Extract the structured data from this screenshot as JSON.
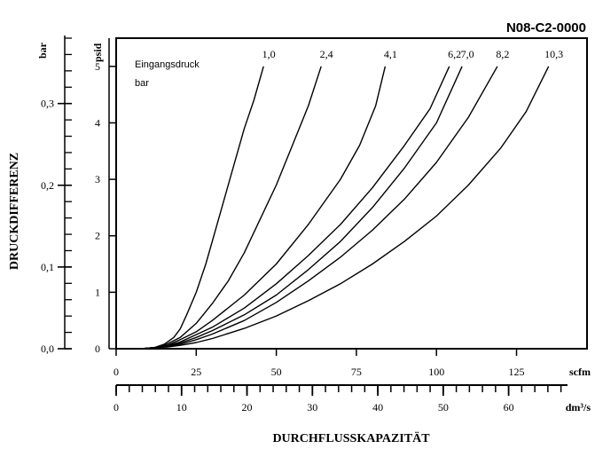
{
  "chart_data": {
    "type": "line",
    "code": "N08-C2-0000",
    "ylabel": "DRUCKDIFFERENZ",
    "xlabel": "DURCHFLUSSKAPAZITÄT",
    "legend_title_line1": "Eingangsdruck",
    "legend_title_line2": "bar",
    "y_psid": {
      "unit": "psid",
      "ylim": [
        0,
        5.5
      ],
      "ticks": [
        0,
        1,
        2,
        3,
        4,
        5
      ],
      "tick_labels": [
        "0",
        "1",
        "2",
        "3",
        "4",
        "5"
      ]
    },
    "y_bar": {
      "unit": "bar",
      "ylim": [
        0,
        0.38
      ],
      "ticks": [
        0.0,
        0.1,
        0.2,
        0.3
      ],
      "tick_labels": [
        "0,0",
        "0,1",
        "0,2",
        "0,3"
      ],
      "minor_step": 0.02
    },
    "x_scfm": {
      "unit": "scfm",
      "xlim": [
        0,
        147
      ],
      "ticks": [
        0,
        25,
        50,
        75,
        100,
        125
      ],
      "tick_labels": [
        "0",
        "25",
        "50",
        "75",
        "100",
        "125"
      ]
    },
    "x_dm3s": {
      "unit": "dm³/s",
      "xlim": [
        0,
        69
      ],
      "ticks": [
        0,
        10,
        20,
        30,
        40,
        50,
        60
      ],
      "tick_labels": [
        "0",
        "10",
        "20",
        "30",
        "40",
        "50",
        "60"
      ],
      "minor_step": 2
    },
    "series": [
      {
        "name": "1,0",
        "x": [
          0,
          8,
          12,
          15,
          18,
          20,
          22,
          25,
          28,
          32,
          36,
          40,
          43,
          46
        ],
        "y": [
          0,
          0,
          0.02,
          0.08,
          0.2,
          0.35,
          0.6,
          1.0,
          1.5,
          2.3,
          3.1,
          3.9,
          4.4,
          5.0
        ]
      },
      {
        "name": "2,4",
        "x": [
          0,
          8,
          12,
          15,
          20,
          25,
          30,
          35,
          40,
          45,
          50,
          55,
          60,
          64
        ],
        "y": [
          0,
          0,
          0.02,
          0.06,
          0.2,
          0.45,
          0.8,
          1.2,
          1.7,
          2.3,
          2.9,
          3.6,
          4.3,
          5.0
        ]
      },
      {
        "name": "4,1",
        "x": [
          0,
          8,
          12,
          16,
          20,
          25,
          30,
          40,
          50,
          60,
          70,
          76,
          81,
          84
        ],
        "y": [
          0,
          0,
          0.02,
          0.06,
          0.16,
          0.3,
          0.5,
          0.95,
          1.5,
          2.2,
          3.0,
          3.6,
          4.3,
          5.0
        ]
      },
      {
        "name": "6,2",
        "x": [
          0,
          8,
          12,
          16,
          20,
          25,
          30,
          40,
          50,
          60,
          70,
          80,
          90,
          98,
          104
        ],
        "y": [
          0,
          0,
          0.02,
          0.05,
          0.12,
          0.25,
          0.38,
          0.72,
          1.15,
          1.65,
          2.2,
          2.85,
          3.6,
          4.25,
          5.0
        ]
      },
      {
        "name": "7,0",
        "x": [
          0,
          8,
          12,
          16,
          20,
          25,
          30,
          40,
          50,
          60,
          70,
          80,
          90,
          100,
          108
        ],
        "y": [
          0,
          0,
          0.02,
          0.05,
          0.1,
          0.2,
          0.32,
          0.6,
          0.95,
          1.4,
          1.9,
          2.5,
          3.2,
          4.0,
          5.0
        ]
      },
      {
        "name": "8,2",
        "x": [
          0,
          8,
          12,
          16,
          20,
          25,
          30,
          40,
          50,
          60,
          70,
          80,
          90,
          100,
          110,
          119
        ],
        "y": [
          0,
          0,
          0.02,
          0.04,
          0.08,
          0.16,
          0.26,
          0.5,
          0.82,
          1.2,
          1.62,
          2.1,
          2.65,
          3.3,
          4.1,
          5.0
        ]
      },
      {
        "name": "10,3",
        "x": [
          0,
          8,
          12,
          16,
          20,
          25,
          30,
          40,
          50,
          60,
          70,
          80,
          90,
          100,
          110,
          120,
          128,
          135
        ],
        "y": [
          0,
          0,
          0.02,
          0.03,
          0.06,
          0.11,
          0.18,
          0.36,
          0.58,
          0.85,
          1.15,
          1.5,
          1.9,
          2.35,
          2.9,
          3.55,
          4.2,
          5.0
        ]
      }
    ]
  }
}
